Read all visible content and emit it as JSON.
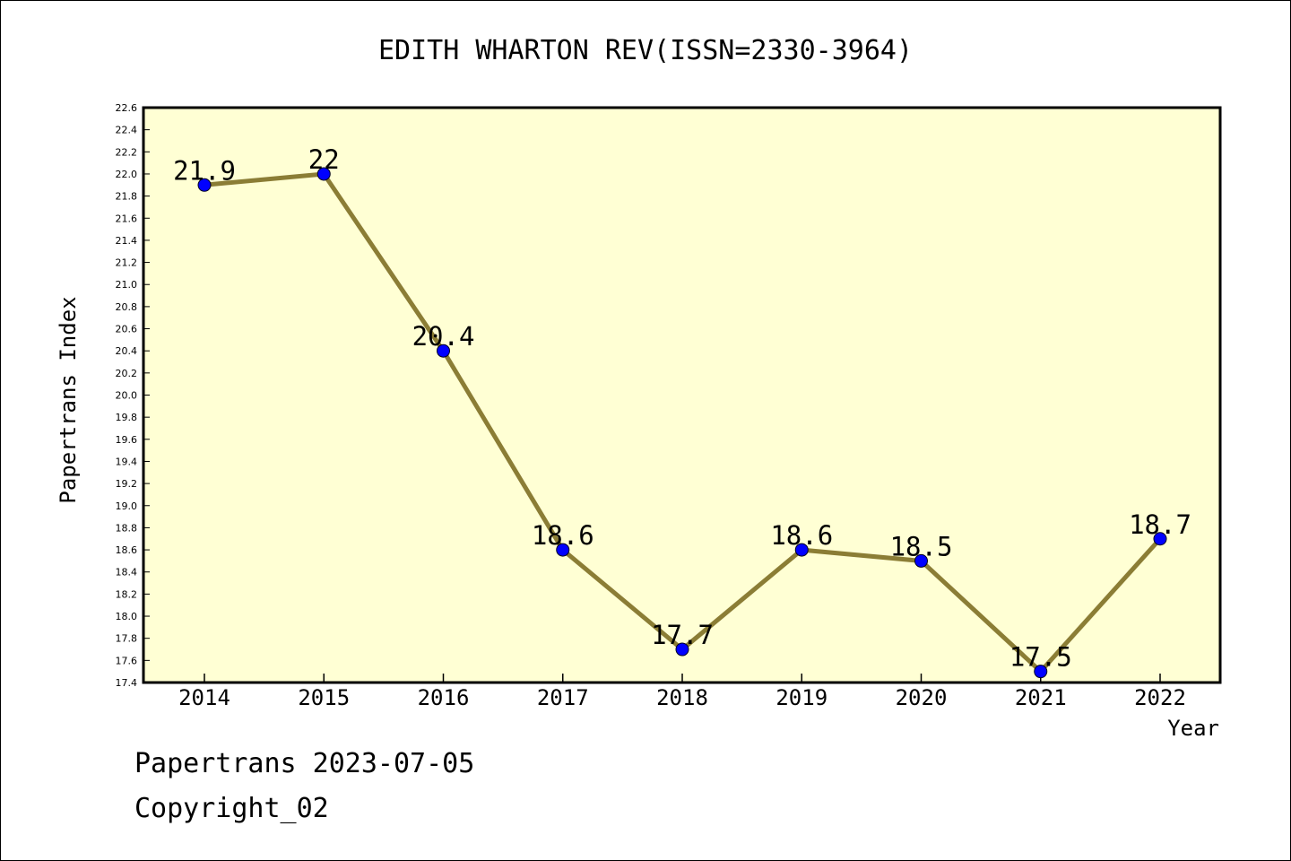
{
  "chart_data": {
    "type": "line",
    "title": "EDITH WHARTON REV(ISSN=2330-3964)",
    "xlabel": "Year",
    "ylabel": "Papertrans Index",
    "categories": [
      "2014",
      "2015",
      "2016",
      "2017",
      "2018",
      "2019",
      "2020",
      "2021",
      "2022"
    ],
    "series": [
      {
        "values": [
          21.9,
          22.0,
          20.4,
          18.6,
          17.7,
          18.6,
          18.5,
          17.5,
          18.7
        ],
        "data_labels": [
          "21.9",
          "22",
          "20.4",
          "18.6",
          "17.7",
          "18.6",
          "18.5",
          "17.5",
          "18.7"
        ]
      }
    ],
    "ylim": [
      17.4,
      22.6
    ],
    "yticks": [
      "17.4",
      "17.6",
      "17.8",
      "18.0",
      "18.2",
      "18.4",
      "18.6",
      "18.8",
      "19.0",
      "19.2",
      "19.4",
      "19.6",
      "19.8",
      "20.0",
      "20.2",
      "20.4",
      "20.6",
      "20.8",
      "21.0",
      "21.2",
      "21.4",
      "21.6",
      "21.8",
      "22.0",
      "22.2",
      "22.4",
      "22.6"
    ],
    "grid": false,
    "colors": {
      "plot_background": "#ffffd4",
      "line": "#8b7d35",
      "marker": "#0000ff"
    }
  },
  "footer": {
    "line1": "Papertrans 2023-07-05",
    "line2": "Copyright_02"
  }
}
